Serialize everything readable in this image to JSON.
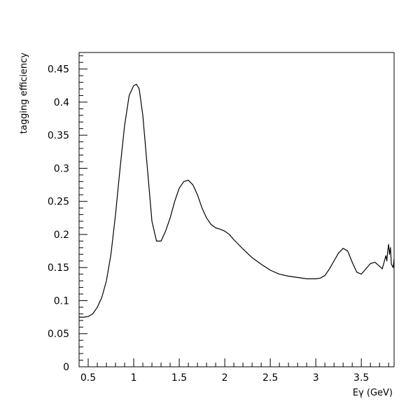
{
  "chart_data": {
    "type": "line",
    "title": "",
    "xlabel": "Eγ (GeV)",
    "ylabel": "tagging efficiency",
    "xlim": [
      0.4,
      3.86
    ],
    "ylim": [
      0,
      0.475
    ],
    "x_ticks": [
      0.5,
      1,
      1.5,
      2,
      2.5,
      3,
      3.5
    ],
    "x_tick_labels": [
      "0.5",
      "1",
      "1.5",
      "2",
      "2.5",
      "3",
      "3.5"
    ],
    "y_ticks": [
      0,
      0.05,
      0.1,
      0.15,
      0.2,
      0.25,
      0.3,
      0.35,
      0.4,
      0.45
    ],
    "y_tick_labels": [
      "0",
      "0.05",
      "0.1",
      "0.15",
      "0.2",
      "0.25",
      "0.3",
      "0.35",
      "0.4",
      "0.45"
    ],
    "grid": false,
    "line_color": "#000000",
    "series": [
      {
        "x": [
          0.4,
          0.45,
          0.5,
          0.55,
          0.6,
          0.65,
          0.7,
          0.75,
          0.8,
          0.85,
          0.9,
          0.95,
          1.0,
          1.03,
          1.06,
          1.1,
          1.15,
          1.2,
          1.25,
          1.3,
          1.35,
          1.4,
          1.45,
          1.5,
          1.55,
          1.6,
          1.65,
          1.7,
          1.75,
          1.8,
          1.85,
          1.9,
          1.95,
          2.0,
          2.05,
          2.1,
          2.2,
          2.3,
          2.4,
          2.5,
          2.6,
          2.7,
          2.8,
          2.9,
          3.0,
          3.05,
          3.1,
          3.15,
          3.2,
          3.25,
          3.3,
          3.35,
          3.4,
          3.45,
          3.5,
          3.55,
          3.6,
          3.65,
          3.7,
          3.73,
          3.75,
          3.77,
          3.78,
          3.79,
          3.8,
          3.81,
          3.82,
          3.83,
          3.85,
          3.86
        ],
        "y": [
          0.075,
          0.075,
          0.076,
          0.08,
          0.09,
          0.105,
          0.13,
          0.17,
          0.23,
          0.3,
          0.365,
          0.41,
          0.425,
          0.427,
          0.42,
          0.38,
          0.3,
          0.22,
          0.19,
          0.19,
          0.205,
          0.225,
          0.25,
          0.27,
          0.28,
          0.282,
          0.275,
          0.26,
          0.24,
          0.225,
          0.215,
          0.21,
          0.208,
          0.205,
          0.2,
          0.192,
          0.178,
          0.165,
          0.155,
          0.146,
          0.14,
          0.137,
          0.135,
          0.133,
          0.133,
          0.134,
          0.138,
          0.148,
          0.16,
          0.172,
          0.179,
          0.175,
          0.158,
          0.143,
          0.14,
          0.148,
          0.156,
          0.158,
          0.152,
          0.148,
          0.158,
          0.168,
          0.16,
          0.175,
          0.185,
          0.17,
          0.18,
          0.155,
          0.15,
          0.163
        ]
      }
    ]
  }
}
